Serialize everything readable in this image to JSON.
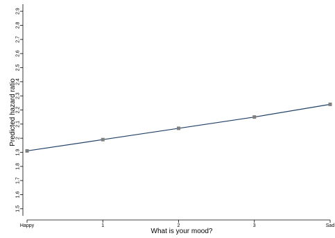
{
  "chart_data": {
    "type": "line",
    "xlabel": "What is your mood?",
    "ylabel": "Predicted hazard ratio",
    "categories": [
      "Happy",
      "1",
      "2",
      "3",
      "Sad"
    ],
    "x": [
      0,
      1,
      2,
      3,
      4
    ],
    "series": [
      {
        "values": [
          1.91,
          1.99,
          2.07,
          2.15,
          2.24
        ]
      }
    ],
    "ylim": [
      1.45,
      2.95
    ],
    "yticks": [
      "1.5",
      "1.6",
      "1.7",
      "1.8",
      "1.9",
      "2",
      "2.1",
      "2.2",
      "2.3",
      "2.4",
      "2.5",
      "2.6",
      "2.7",
      "2.8",
      "2.9"
    ],
    "grid": false,
    "legend": "none",
    "colors": {
      "line": "#1f3f66",
      "marker": "#7f7f7f",
      "axis": "#000000"
    }
  }
}
